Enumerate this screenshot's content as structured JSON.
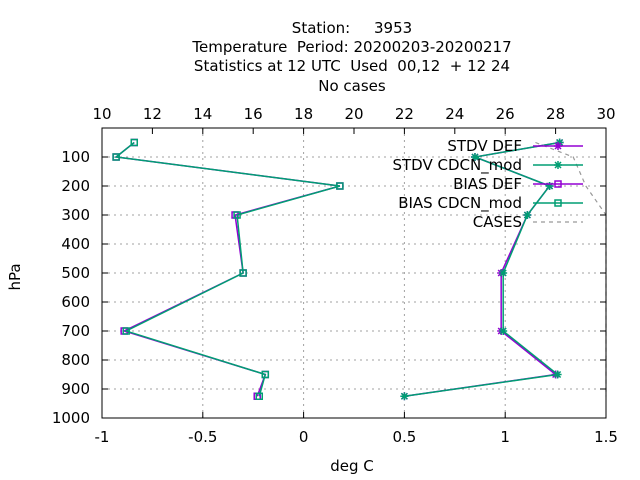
{
  "chart_data": {
    "type": "line",
    "title_lines": [
      "Station:     3953",
      "Temperature  Period: 20200203-20200217",
      "Statistics at 12 UTC  Used  00,12  + 12 24",
      "No cases"
    ],
    "xlabel": "deg C",
    "ylabel": "hPa",
    "xlim": [
      -1,
      1.5
    ],
    "x2lim": [
      10,
      30
    ],
    "ylim": [
      1000,
      0
    ],
    "x_ticks": [
      "-1",
      "-0.5",
      "0",
      "0.5",
      "1",
      "1.5"
    ],
    "x2_ticks": [
      "10",
      "12",
      "14",
      "16",
      "18",
      "20",
      "22",
      "24",
      "26",
      "28",
      "30"
    ],
    "y_ticks": [
      "100",
      "200",
      "300",
      "400",
      "500",
      "600",
      "700",
      "800",
      "900",
      "1000"
    ],
    "grid": true,
    "legend_position": "top-right",
    "series": [
      {
        "name": "STDV DEF",
        "color": "#9400d3",
        "marker": "star",
        "axis": "bottom",
        "points": [
          [
            1.27,
            50
          ],
          [
            0.85,
            100
          ],
          [
            1.22,
            200
          ],
          [
            1.11,
            300
          ],
          [
            0.98,
            500
          ],
          [
            0.98,
            700
          ],
          [
            1.25,
            850
          ],
          [
            0.5,
            925
          ]
        ]
      },
      {
        "name": "STDV CDCN_mod",
        "color": "#009e73",
        "marker": "star",
        "axis": "bottom",
        "points": [
          [
            1.27,
            50
          ],
          [
            0.85,
            100
          ],
          [
            1.22,
            200
          ],
          [
            1.11,
            300
          ],
          [
            0.99,
            500
          ],
          [
            0.99,
            700
          ],
          [
            1.26,
            850
          ],
          [
            0.5,
            925
          ]
        ]
      },
      {
        "name": "BIAS DEF",
        "color": "#9400d3",
        "marker": "square",
        "axis": "bottom",
        "points": [
          [
            -0.84,
            50
          ],
          [
            -0.93,
            100
          ],
          [
            0.18,
            200
          ],
          [
            -0.34,
            300
          ],
          [
            -0.3,
            500
          ],
          [
            -0.89,
            700
          ],
          [
            -0.19,
            850
          ],
          [
            -0.23,
            925
          ]
        ]
      },
      {
        "name": "BIAS CDCN_mod",
        "color": "#009e73",
        "marker": "square",
        "axis": "bottom",
        "points": [
          [
            -0.84,
            50
          ],
          [
            -0.93,
            100
          ],
          [
            0.18,
            200
          ],
          [
            -0.33,
            300
          ],
          [
            -0.3,
            500
          ],
          [
            -0.88,
            700
          ],
          [
            -0.19,
            850
          ],
          [
            -0.22,
            925
          ]
        ]
      },
      {
        "name": "CASES",
        "color": "#999999",
        "marker": "none",
        "dashed": true,
        "axis": "top",
        "points": [
          [
            27.2,
            50
          ],
          [
            28.7,
            100
          ],
          [
            29.2,
            200
          ],
          [
            30,
            300
          ],
          [
            30,
            500
          ],
          [
            30,
            700
          ],
          [
            30,
            850
          ],
          [
            30,
            925
          ]
        ]
      }
    ]
  }
}
